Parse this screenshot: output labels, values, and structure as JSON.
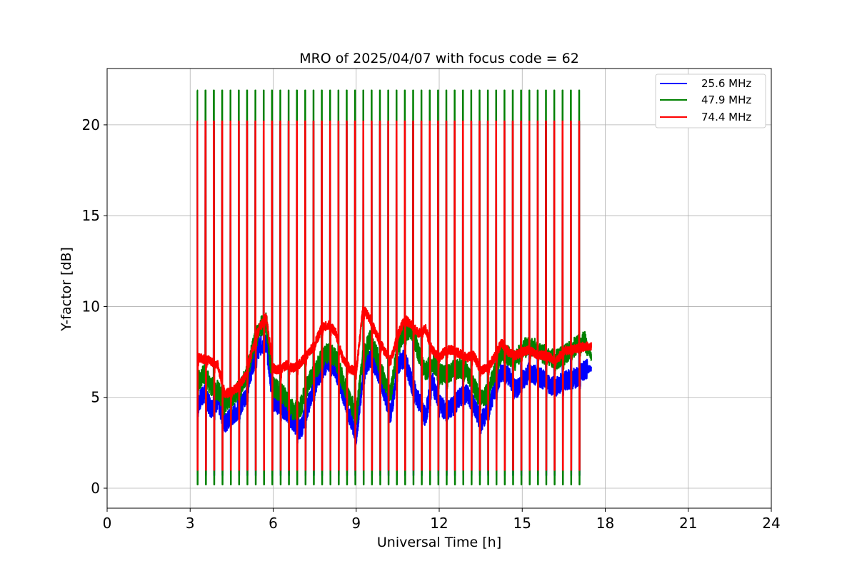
{
  "chart_data": {
    "type": "line",
    "title": "MRO of 2025/04/07 with focus code = 62",
    "xlabel": "Universal Time [h]",
    "ylabel": "Y-factor [dB]",
    "xlim": [
      0,
      24
    ],
    "ylim": [
      -1.1,
      23.1
    ],
    "xticks": [
      0,
      3,
      6,
      9,
      12,
      15,
      18,
      21,
      24
    ],
    "yticks": [
      0,
      5,
      10,
      15,
      20
    ],
    "grid": true,
    "legend_position": "top-right",
    "cycle": {
      "start_h": 3.25,
      "end_h": 17.35,
      "period_h": 0.3,
      "high_values_db": {
        "25.6 MHz": 20.2,
        "47.9 MHz": 21.9,
        "74.4 MHz": 20.2
      },
      "low_values_db": {
        "25.6 MHz": 0.7,
        "47.9 MHz": 0.2,
        "74.4 MHz": 1.0
      }
    },
    "series": [
      {
        "name": "25.6 MHz",
        "color": "#0000ff",
        "x": [
          3.25,
          3.5,
          3.75,
          4.0,
          4.25,
          4.5,
          4.75,
          5.0,
          5.25,
          5.5,
          5.75,
          6.0,
          6.25,
          6.5,
          6.75,
          7.0,
          7.25,
          7.5,
          7.75,
          8.0,
          8.25,
          8.5,
          8.75,
          9.0,
          9.25,
          9.5,
          9.75,
          10.0,
          10.25,
          10.5,
          10.75,
          11.0,
          11.25,
          11.5,
          11.75,
          12.0,
          12.25,
          12.5,
          12.75,
          13.0,
          13.25,
          13.5,
          13.75,
          14.0,
          14.25,
          14.5,
          14.75,
          15.0,
          15.25,
          15.5,
          15.75,
          16.0,
          16.25,
          16.5,
          16.75,
          17.0,
          17.25,
          17.5
        ],
        "values": [
          4.6,
          5.2,
          4.4,
          4.8,
          3.6,
          3.9,
          4.4,
          5.0,
          6.8,
          7.8,
          8.0,
          4.8,
          4.5,
          4.2,
          3.6,
          3.2,
          4.5,
          5.6,
          6.5,
          7.0,
          6.6,
          5.4,
          4.0,
          2.9,
          6.3,
          7.2,
          6.6,
          5.4,
          4.0,
          6.8,
          7.2,
          5.8,
          4.8,
          3.9,
          5.9,
          4.6,
          4.2,
          4.5,
          5.0,
          5.2,
          4.6,
          3.6,
          4.3,
          5.4,
          6.4,
          6.2,
          5.4,
          5.9,
          6.4,
          6.2,
          6.0,
          5.7,
          5.6,
          5.9,
          6.0,
          6.1,
          6.5,
          6.6
        ]
      },
      {
        "name": "47.9 MHz",
        "color": "#008000",
        "x": [
          3.25,
          3.5,
          3.75,
          4.0,
          4.25,
          4.5,
          4.75,
          5.0,
          5.25,
          5.5,
          5.75,
          6.0,
          6.25,
          6.5,
          6.75,
          7.0,
          7.25,
          7.5,
          7.75,
          8.0,
          8.25,
          8.5,
          8.75,
          9.0,
          9.25,
          9.5,
          9.75,
          10.0,
          10.25,
          10.5,
          10.75,
          11.0,
          11.25,
          11.5,
          11.75,
          12.0,
          12.25,
          12.5,
          12.75,
          13.0,
          13.25,
          13.5,
          13.75,
          14.0,
          14.25,
          14.5,
          14.75,
          15.0,
          15.25,
          15.5,
          15.75,
          16.0,
          16.25,
          16.5,
          16.75,
          17.0,
          17.25,
          17.5
        ],
        "values": [
          5.8,
          6.3,
          5.6,
          5.4,
          4.6,
          5.0,
          5.4,
          6.0,
          7.6,
          8.8,
          9.2,
          5.6,
          5.3,
          4.9,
          4.2,
          4.5,
          5.7,
          6.4,
          7.1,
          7.5,
          7.2,
          6.0,
          5.0,
          3.9,
          7.2,
          8.2,
          7.3,
          6.0,
          5.2,
          7.8,
          8.6,
          8.8,
          7.5,
          6.4,
          7.0,
          6.3,
          6.2,
          6.5,
          6.6,
          6.4,
          5.6,
          4.9,
          5.2,
          6.4,
          7.5,
          7.3,
          7.0,
          7.7,
          7.8,
          7.7,
          7.4,
          7.2,
          7.1,
          7.3,
          7.6,
          7.9,
          8.1,
          7.2
        ]
      },
      {
        "name": "74.4 MHz",
        "color": "#ff0000",
        "x": [
          3.25,
          3.5,
          3.75,
          4.0,
          4.25,
          4.5,
          4.75,
          5.0,
          5.25,
          5.5,
          5.75,
          6.0,
          6.25,
          6.5,
          6.75,
          7.0,
          7.25,
          7.5,
          7.75,
          8.0,
          8.25,
          8.5,
          8.75,
          9.0,
          9.25,
          9.5,
          9.75,
          10.0,
          10.25,
          10.5,
          10.75,
          11.0,
          11.25,
          11.5,
          11.75,
          12.0,
          12.25,
          12.5,
          12.75,
          13.0,
          13.25,
          13.5,
          13.75,
          14.0,
          14.25,
          14.5,
          14.75,
          15.0,
          15.25,
          15.5,
          15.75,
          16.0,
          16.25,
          16.5,
          16.75,
          17.0,
          17.25,
          17.5
        ],
        "values": [
          7.2,
          7.1,
          7.0,
          6.8,
          5.2,
          5.3,
          5.6,
          6.2,
          7.6,
          8.8,
          9.4,
          6.6,
          6.5,
          6.8,
          6.6,
          6.9,
          7.4,
          7.9,
          8.8,
          9.0,
          8.6,
          7.2,
          6.6,
          6.4,
          9.9,
          9.3,
          8.4,
          7.6,
          7.0,
          8.4,
          9.3,
          9.0,
          8.5,
          8.8,
          7.6,
          7.2,
          7.6,
          7.6,
          7.4,
          7.2,
          7.3,
          6.5,
          6.6,
          7.2,
          8.0,
          7.5,
          7.3,
          7.5,
          7.6,
          7.4,
          7.3,
          7.2,
          7.0,
          7.6,
          7.6,
          7.7,
          7.8,
          7.8
        ]
      }
    ]
  }
}
